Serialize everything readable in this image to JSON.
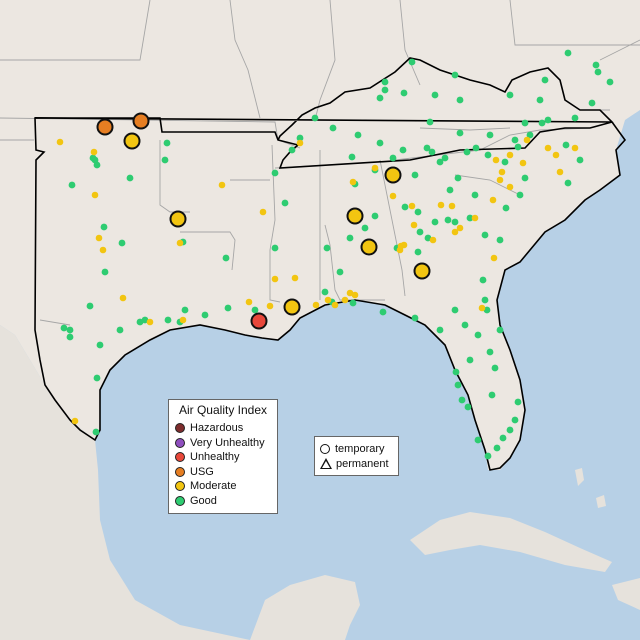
{
  "map": {
    "legend": {
      "title": "Air Quality Index",
      "categories": [
        {
          "label": "Hazardous",
          "color": "#7e2d2d"
        },
        {
          "label": "Very Unhealthy",
          "color": "#8f4fbf"
        },
        {
          "label": "Unhealthy",
          "color": "#e8473a"
        },
        {
          "label": "USG",
          "color": "#e67e22"
        },
        {
          "label": "Moderate",
          "color": "#f2c511"
        },
        {
          "label": "Good",
          "color": "#2ecc71"
        }
      ]
    },
    "shape_legend": {
      "temporary": "temporary",
      "permanent": "permanent"
    },
    "colors": {
      "land": "#ece7e1",
      "water": "#b7d0e6",
      "state_border": "#a6a6a6",
      "region_outline": "#000000"
    }
  }
}
